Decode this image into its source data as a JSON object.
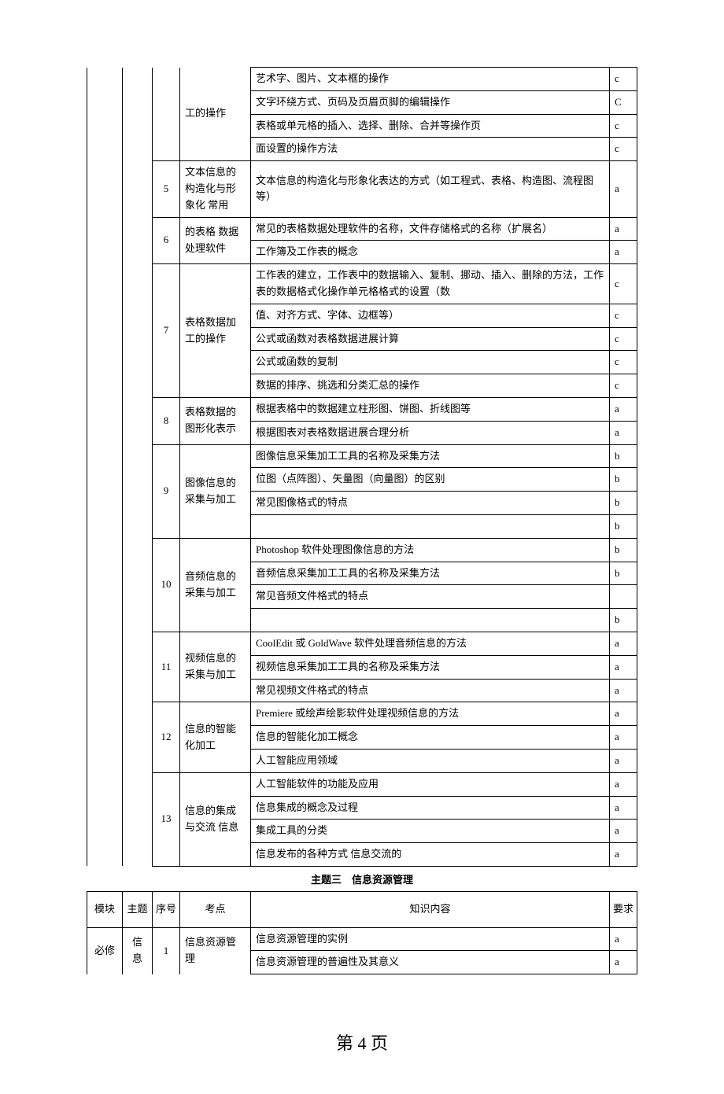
{
  "table1": {
    "rows": [
      {
        "seq": "",
        "point": "工的操作",
        "content": "艺术字、图片、文本框的操作",
        "req": "c",
        "seqRowspan": 4,
        "pointRowspan": 4,
        "noTop": true
      },
      {
        "content": "文字环绕方式、页码及页眉页脚的编辑操作",
        "req": "C"
      },
      {
        "content": "表格或单元格的插入、选择、删除、合并等操作页",
        "req": "c"
      },
      {
        "content": "面设置的操作方法",
        "req": "c"
      },
      {
        "seq": "5",
        "point": "文本信息的构造化与形象化 常用",
        "content": "文本信息的构造化与形象化表达的方式（如工程式、表格、构造图、流程图等）",
        "req": "a",
        "seqRowspan": 1,
        "pointRowspan": 1
      },
      {
        "seq": "6",
        "point": "的表格 数据处理软件",
        "content": "常见的表格数据处理软件的名称，文件存储格式的名称（扩展名）",
        "req": "a",
        "seqRowspan": 2,
        "pointRowspan": 2
      },
      {
        "content": "工作簿及工作表的概念",
        "req": "a"
      },
      {
        "seq": "7",
        "point": "表格数据加工的操作",
        "content": "工作表的建立，工作表中的数据输入、复制、挪动、插入、删除的方法，工作表的数据格式化操作单元格格式的设置（数",
        "req": "c",
        "seqRowspan": 5,
        "pointRowspan": 5
      },
      {
        "content": "值、对齐方式、字体、边框等）",
        "req": "c"
      },
      {
        "content": "公式或函数对表格数据进展计算",
        "req": "c"
      },
      {
        "content": "公式或函数的复制",
        "req": "c"
      },
      {
        "content": "数据的排序、挑选和分类汇总的操作",
        "req": "c"
      },
      {
        "seq": "8",
        "point": "表格数据的图形化表示",
        "content": "根据表格中的数据建立柱形图、饼图、折线图等",
        "req": "a",
        "seqRowspan": 2,
        "pointRowspan": 2
      },
      {
        "content": "根据图表对表格数据进展合理分析",
        "req": "a"
      },
      {
        "seq": "9",
        "point": "图像信息的采集与加工",
        "content": "图像信息采集加工工具的名称及采集方法",
        "req": "b",
        "seqRowspan": 4,
        "pointRowspan": 4
      },
      {
        "content": "位图（点阵图）、矢量图（向量图）的区别",
        "req": "b"
      },
      {
        "content": "常见图像格式的特点",
        "req": "b"
      },
      {
        "content": "",
        "req": "b"
      },
      {
        "seq": "10",
        "point": "音频信息的采集与加工",
        "content": "Photoshop 软件处理图像信息的方法",
        "req": "b",
        "seqRowspan": 4,
        "pointRowspan": 4
      },
      {
        "content": "音频信息采集加工工具的名称及采集方法",
        "req": "b"
      },
      {
        "content": "常见音频文件格式的特点",
        "req": ""
      },
      {
        "content": "",
        "req": "b"
      },
      {
        "seq": "11",
        "point": "视频信息的采集与加工",
        "content": "CoolEdit 或 GoldWave 软件处理音频信息的方法",
        "req": "a",
        "seqRowspan": 3,
        "pointRowspan": 3
      },
      {
        "content": "视频信息采集加工工具的名称及采集方法",
        "req": "a"
      },
      {
        "content": "常见视频文件格式的特点",
        "req": "a"
      },
      {
        "seq": "12",
        "point": "信息的智能化加工",
        "content": "Premiere 或绘声绘影软件处理视频信息的方法",
        "req": "a",
        "seqRowspan": 3,
        "pointRowspan": 3
      },
      {
        "content": "信息的智能化加工概念",
        "req": "a"
      },
      {
        "content": "人工智能应用领域",
        "req": "a"
      },
      {
        "seq": "13",
        "point": "信息的集成与交流 信息",
        "content": "人工智能软件的功能及应用",
        "req": "a",
        "seqRowspan": 4,
        "pointRowspan": 4
      },
      {
        "content": "信息集成的概念及过程",
        "req": "a"
      },
      {
        "content": "集成工具的分类",
        "req": "a"
      },
      {
        "content": "信息发布的各种方式 信息交流的",
        "req": "a"
      }
    ]
  },
  "sectionTitle": "主题三　信息资源管理",
  "table2": {
    "headers": {
      "module": "模块",
      "topic": "主题",
      "seq": "序号",
      "point": "考点",
      "content": "知识内容",
      "req": "要求"
    },
    "module": "必修",
    "topic": "信息",
    "seq": "1",
    "point": "信息资源管理",
    "rows": [
      {
        "content": "信息资源管理的实例",
        "req": "a"
      },
      {
        "content": "信息资源管理的普遍性及其意义",
        "req": "a"
      }
    ]
  },
  "pageNumber": "第 4 页"
}
